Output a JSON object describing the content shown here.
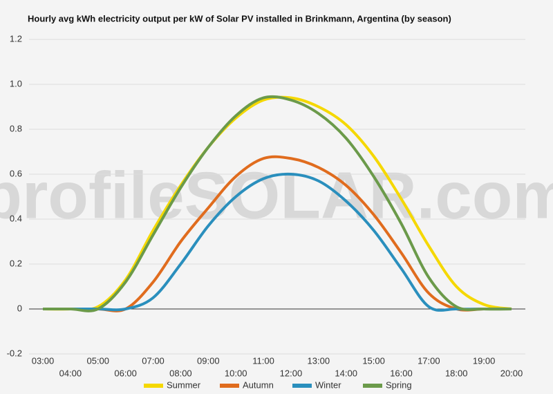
{
  "chart_data": {
    "type": "line",
    "title": "Hourly avg kWh electricity output per kW of Solar PV installed in Brinkmann, Argentina (by season)",
    "watermark": "profileSOLAR.com",
    "categories": [
      "03:00",
      "04:00",
      "05:00",
      "06:00",
      "07:00",
      "08:00",
      "09:00",
      "10:00",
      "11:00",
      "12:00",
      "13:00",
      "14:00",
      "15:00",
      "16:00",
      "17:00",
      "18:00",
      "19:00",
      "20:00"
    ],
    "series": [
      {
        "name": "Summer",
        "color": "#f5d800",
        "values": [
          0,
          0,
          0.01,
          0.13,
          0.35,
          0.55,
          0.72,
          0.85,
          0.93,
          0.94,
          0.9,
          0.82,
          0.68,
          0.49,
          0.28,
          0.1,
          0.02,
          0
        ]
      },
      {
        "name": "Autumn",
        "color": "#e06c1e",
        "values": [
          0,
          0,
          0,
          0,
          0.12,
          0.3,
          0.45,
          0.59,
          0.67,
          0.67,
          0.63,
          0.55,
          0.42,
          0.25,
          0.07,
          0,
          0,
          0
        ]
      },
      {
        "name": "Winter",
        "color": "#2a8fbd",
        "values": [
          0,
          0,
          0,
          0,
          0.05,
          0.2,
          0.37,
          0.5,
          0.58,
          0.6,
          0.57,
          0.48,
          0.35,
          0.18,
          0.01,
          0,
          0,
          0
        ]
      },
      {
        "name": "Spring",
        "color": "#6b9a4a",
        "values": [
          0,
          0,
          0,
          0.12,
          0.33,
          0.54,
          0.72,
          0.86,
          0.94,
          0.93,
          0.87,
          0.76,
          0.59,
          0.38,
          0.14,
          0.01,
          0,
          0
        ]
      }
    ],
    "ylim": [
      -0.2,
      1.2
    ],
    "yticks": [
      -0.2,
      0,
      0.2,
      0.4,
      0.6,
      0.8,
      {
        "value": 1,
        "label": "1.0"
      },
      1.2
    ],
    "grid": true,
    "legend": "bottom"
  }
}
